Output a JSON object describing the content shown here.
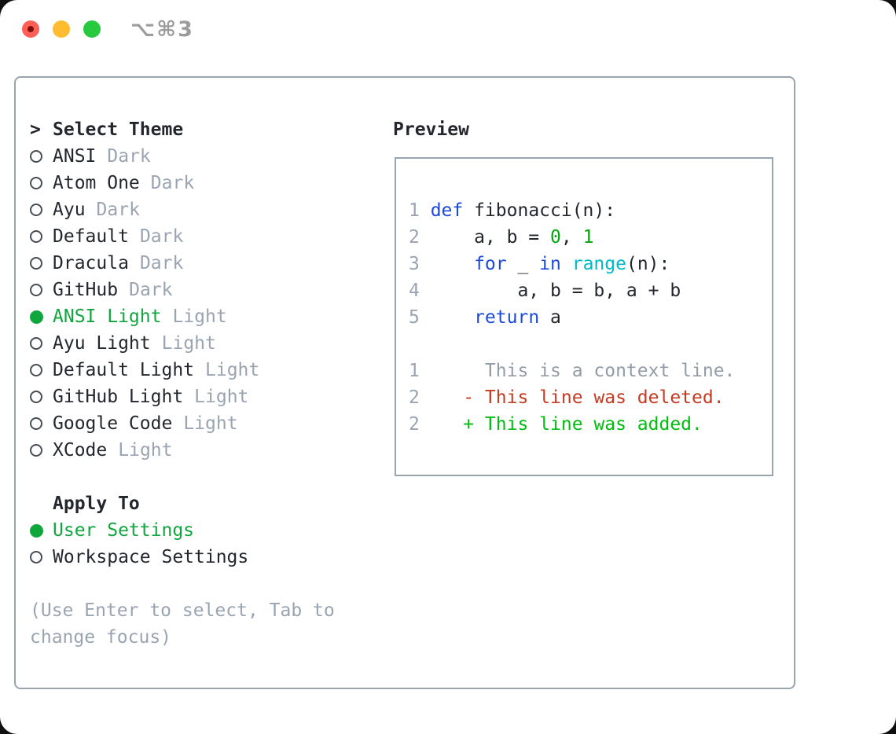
{
  "window": {
    "title_shortcut": "⌥⌘3"
  },
  "colors": {
    "page_bg": "#101010",
    "window_bg": "#ffffff",
    "ink": "#23272d",
    "muted": "#9aa4b1",
    "border": "#9aa4b0",
    "radio": "#474d56",
    "sel": "#10a63e",
    "kw": "#1b49dd",
    "num": "#00a60d",
    "builtin": "#00b9c8",
    "ctx": "#929ca6",
    "del": "#c53b22",
    "add": "#00bd0f",
    "shortcut": "#9c9c9c",
    "tl_red": "#ff5f57",
    "tl_yellow": "#febc2e",
    "tl_green": "#27c93f",
    "tl_red_dot": "#7e0f08"
  },
  "theme_list": {
    "header": {
      "prefix": ">",
      "label": "Select Theme"
    },
    "items": [
      {
        "label": "ANSI",
        "tag": "Dark",
        "state": ""
      },
      {
        "label": "Atom One",
        "tag": "Dark",
        "state": ""
      },
      {
        "label": "Ayu",
        "tag": "Dark",
        "state": ""
      },
      {
        "label": "Default",
        "tag": "Dark",
        "state": ""
      },
      {
        "label": "Dracula",
        "tag": "Dark",
        "state": ""
      },
      {
        "label": "GitHub",
        "tag": "Dark",
        "state": ""
      },
      {
        "label": "ANSI Light",
        "tag": "Light",
        "state": "selected"
      },
      {
        "label": "Ayu Light",
        "tag": "Light",
        "state": ""
      },
      {
        "label": "Default Light",
        "tag": "Light",
        "state": ""
      },
      {
        "label": "GitHub Light",
        "tag": "Light",
        "state": ""
      },
      {
        "label": "Google Code",
        "tag": "Light",
        "state": ""
      },
      {
        "label": "XCode",
        "tag": "Light",
        "state": ""
      }
    ]
  },
  "apply_to": {
    "header": "Apply To",
    "items": [
      {
        "label": "User Settings",
        "state": "selected"
      },
      {
        "label": "Workspace Settings",
        "state": ""
      }
    ]
  },
  "hint_lines": [
    "(Use Enter to select, Tab to",
    "change focus)"
  ],
  "preview": {
    "header": "Preview",
    "code_lines": [
      {
        "num": "1",
        "segments": [
          {
            "text": "def",
            "color": "kw"
          },
          {
            "text": " fibonacci(n):",
            "color": "ink"
          }
        ]
      },
      {
        "num": "2",
        "segments": [
          {
            "text": "    a, b = ",
            "color": "ink"
          },
          {
            "text": "0",
            "color": "num"
          },
          {
            "text": ", ",
            "color": "ink"
          },
          {
            "text": "1",
            "color": "num"
          }
        ]
      },
      {
        "num": "3",
        "segments": [
          {
            "text": "    ",
            "color": "ink"
          },
          {
            "text": "for",
            "color": "kw"
          },
          {
            "text": " _ ",
            "color": "ink"
          },
          {
            "text": "in",
            "color": "kw"
          },
          {
            "text": " ",
            "color": "ink"
          },
          {
            "text": "range",
            "color": "builtin"
          },
          {
            "text": "(n):",
            "color": "ink"
          }
        ]
      },
      {
        "num": "4",
        "segments": [
          {
            "text": "        a, b = b, a + b",
            "color": "ink"
          }
        ]
      },
      {
        "num": "5",
        "segments": [
          {
            "text": "    ",
            "color": "ink"
          },
          {
            "text": "return",
            "color": "kw"
          },
          {
            "text": " a",
            "color": "ink"
          }
        ]
      }
    ],
    "diff_lines": [
      {
        "num": "1",
        "segments": [
          {
            "text": "     This is a context line.",
            "color": "ctx"
          }
        ]
      },
      {
        "num": "2",
        "segments": [
          {
            "text": "   ",
            "color": "ink"
          },
          {
            "text": "- This line was deleted.",
            "color": "del"
          }
        ]
      },
      {
        "num": "2",
        "segments": [
          {
            "text": "   ",
            "color": "ink"
          },
          {
            "text": "+ This line was added.",
            "color": "add"
          }
        ]
      }
    ]
  }
}
